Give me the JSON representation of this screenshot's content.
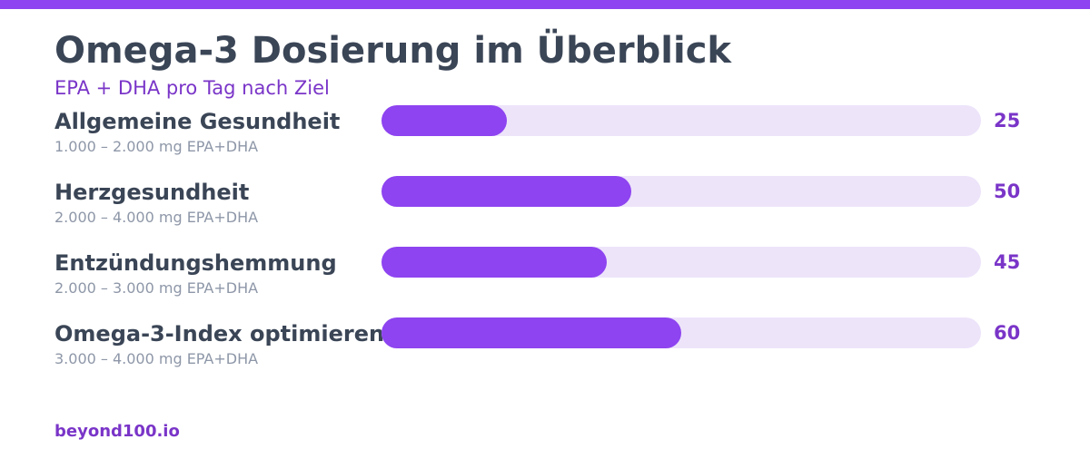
{
  "colors": {
    "accent": "#8e44f0",
    "accent_text": "#7a35c8",
    "track": "#ede4fa",
    "title": "#3a4556",
    "muted": "#8e97a8"
  },
  "header": {
    "title": "Omega-3 Dosierung im Überblick",
    "subtitle": "EPA + DHA pro Tag nach Ziel"
  },
  "chart_data": {
    "type": "bar",
    "orientation": "horizontal",
    "categories": [
      "Allgemeine Gesundheit",
      "Herzgesundheit",
      "Entzündungshemmung",
      "Omega-3-Index optimieren"
    ],
    "category_notes": [
      "1.000 – 2.000 mg EPA+DHA",
      "2.000 – 4.000 mg EPA+DHA",
      "2.000 – 3.000 mg EPA+DHA",
      "3.000 – 4.000 mg EPA+DHA"
    ],
    "values": [
      25,
      50,
      45,
      60
    ],
    "xlim": [
      0,
      120
    ],
    "title": "Omega-3 Dosierung im Überblick",
    "subtitle": "EPA + DHA pro Tag nach Ziel",
    "grid": false,
    "legend": "none"
  },
  "footer": {
    "brand": "beyond100.io"
  }
}
